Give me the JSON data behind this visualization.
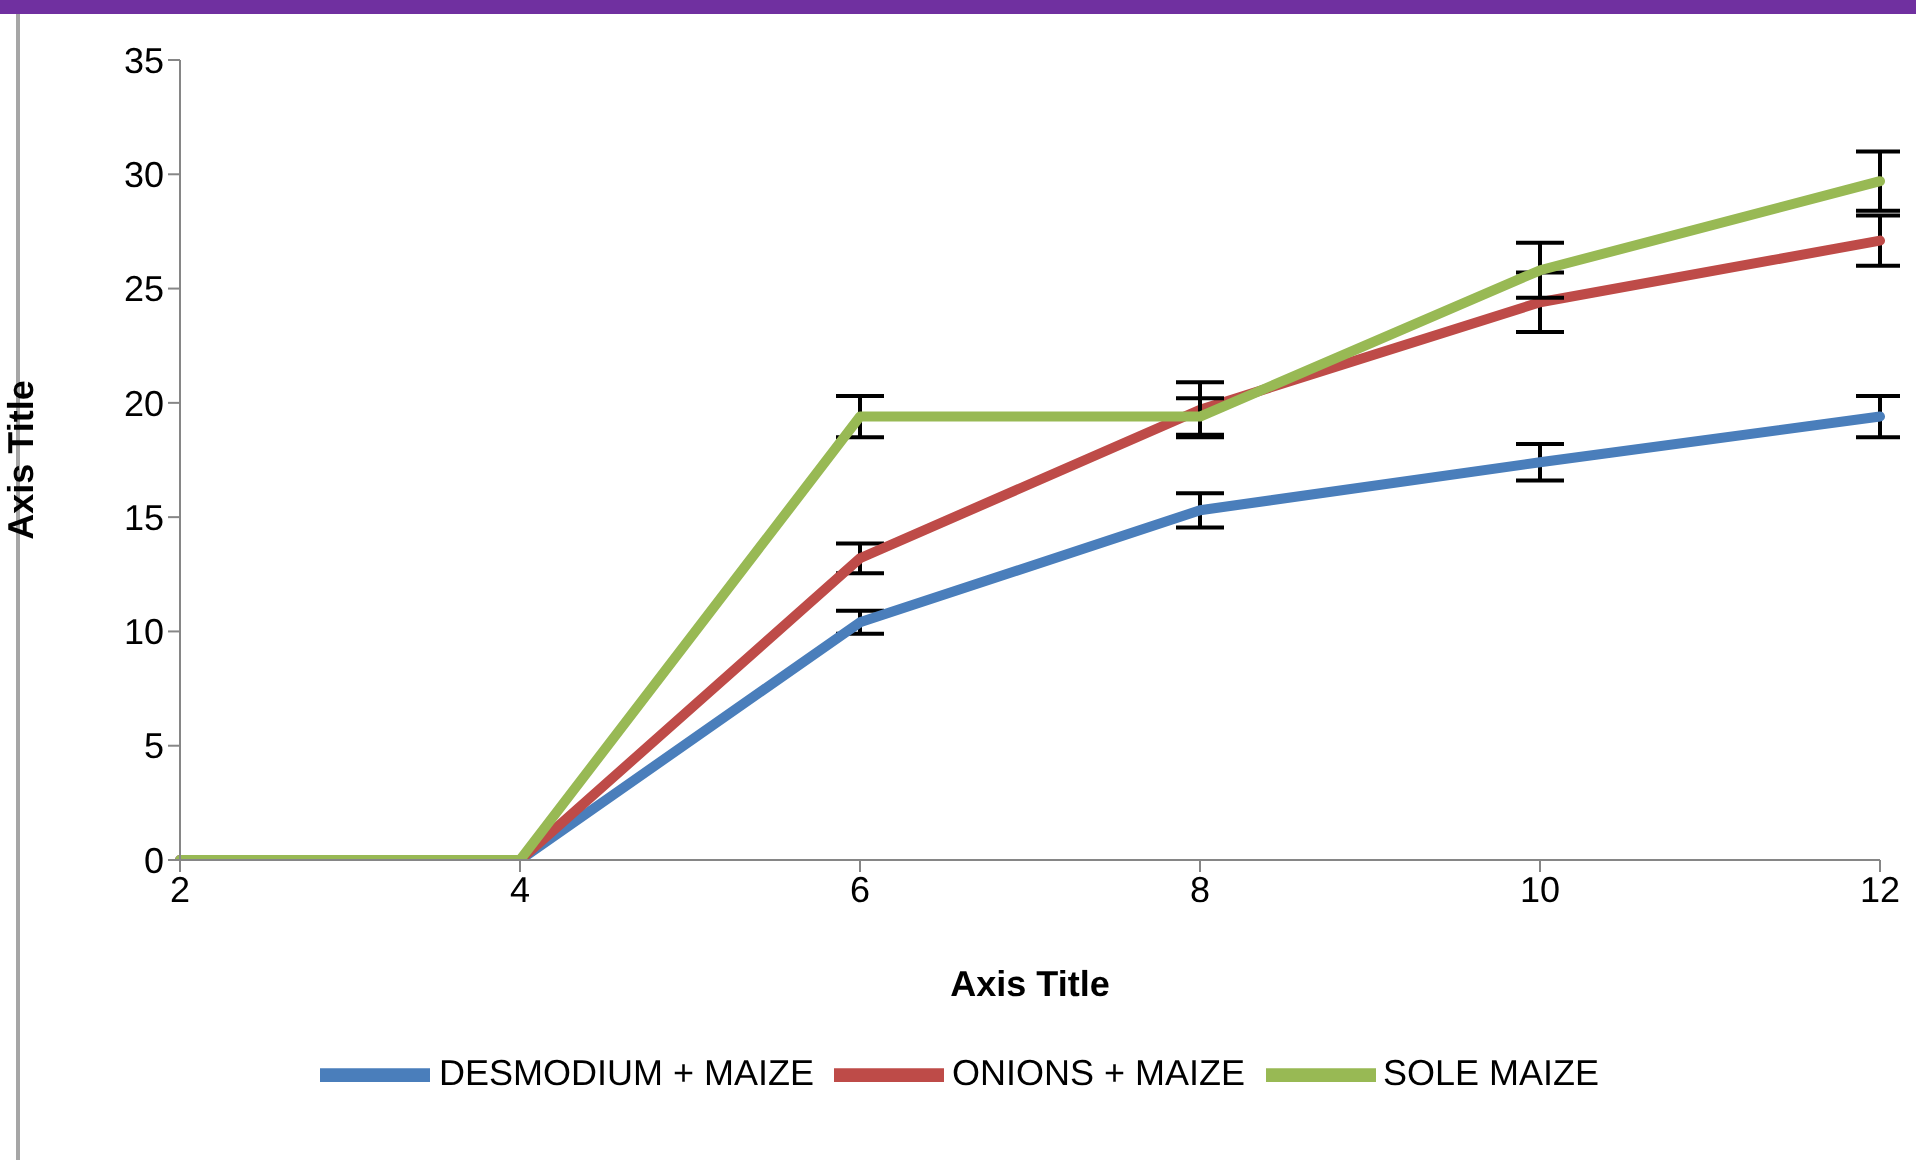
{
  "chart_data": {
    "type": "line",
    "xlabel": "Axis Title",
    "ylabel": "Axis Title",
    "categories": [
      "2",
      "4",
      "6",
      "8",
      "10",
      "12"
    ],
    "series": [
      {
        "name": "DESMODIUM + MAIZE",
        "color": "#4a7ebb",
        "values": [
          0,
          0,
          10.4,
          15.3,
          17.4,
          19.4
        ],
        "errors": [
          null,
          null,
          0.5,
          0.75,
          0.8,
          0.9
        ]
      },
      {
        "name": "ONIONS + MAIZE",
        "color": "#be4b48",
        "values": [
          0,
          0,
          13.2,
          19.7,
          24.4,
          27.1
        ],
        "errors": [
          null,
          null,
          0.65,
          1.2,
          1.3,
          1.1
        ]
      },
      {
        "name": "SOLE MAIZE",
        "color": "#98b954",
        "values": [
          0,
          0,
          19.4,
          19.4,
          25.8,
          29.7
        ],
        "errors": [
          null,
          null,
          0.9,
          0.8,
          1.2,
          1.3
        ]
      }
    ],
    "ylim": [
      0,
      35
    ],
    "yticks": [
      0,
      5,
      10,
      15,
      20,
      25,
      30,
      35
    ],
    "grid": false,
    "legend": "bottom",
    "marker": "none",
    "line_style": "solid"
  }
}
